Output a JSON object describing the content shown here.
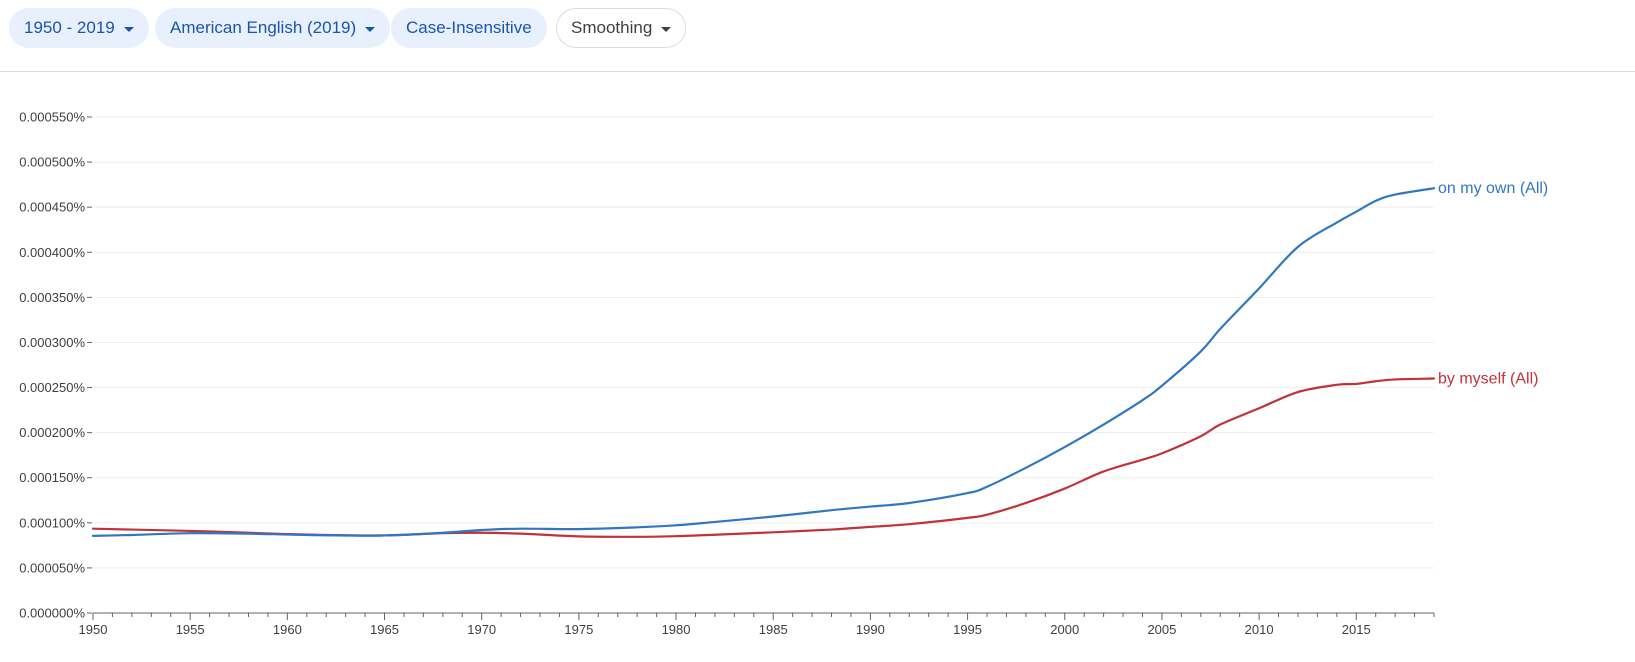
{
  "toolbar": {
    "year_range_label": "1950 - 2019",
    "corpus_label": "American English (2019)",
    "case_label": "Case-Insensitive",
    "smoothing_label": "Smoothing"
  },
  "chart_data": {
    "type": "line",
    "title": "",
    "xlabel": "",
    "ylabel": "",
    "xlim": [
      1950,
      2019
    ],
    "ylim": [
      0,
      0.00055
    ],
    "x_ticks": [
      1950,
      1955,
      1960,
      1965,
      1970,
      1975,
      1980,
      1985,
      1990,
      1995,
      2000,
      2005,
      2010,
      2015
    ],
    "y_ticks": [
      0,
      5e-05,
      0.0001,
      0.00015,
      0.0002,
      0.00025,
      0.0003,
      0.00035,
      0.0004,
      0.00045,
      0.0005,
      0.00055
    ],
    "y_tick_labels": [
      "0.000000%",
      "0.000050%",
      "0.000100%",
      "0.000150%",
      "0.000200%",
      "0.000250%",
      "0.000300%",
      "0.000350%",
      "0.000400%",
      "0.000450%",
      "0.000500%",
      "0.000550%"
    ],
    "grid": true,
    "legend": "inline-right",
    "series": [
      {
        "name": "on my own (All)",
        "color": "#3077c0",
        "x": [
          1950,
          1952,
          1955,
          1958,
          1960,
          1962,
          1965,
          1968,
          1970,
          1972,
          1975,
          1978,
          1980,
          1982,
          1985,
          1988,
          1990,
          1992,
          1995,
          1996,
          1998,
          2000,
          2002,
          2004,
          2005,
          2007,
          2008,
          2010,
          2012,
          2014,
          2015,
          2016,
          2017,
          2019
        ],
        "y": [
          8.55e-05,
          8.65e-05,
          8.85e-05,
          8.8e-05,
          8.7e-05,
          8.62e-05,
          8.6e-05,
          8.9e-05,
          9.2e-05,
          9.35e-05,
          9.3e-05,
          9.5e-05,
          9.72e-05,
          0.000101,
          0.000107,
          0.000114,
          0.000118,
          0.000122,
          0.000133,
          0.00014,
          0.000161,
          0.000184,
          0.000209,
          0.000236,
          0.000252,
          0.00029,
          0.000315,
          0.00036,
          0.000406,
          0.000433,
          0.000445,
          0.000457,
          0.000464,
          0.000471
        ]
      },
      {
        "name": "by myself (All)",
        "color": "#c0333a",
        "x": [
          1950,
          1952,
          1955,
          1958,
          1960,
          1962,
          1965,
          1968,
          1970,
          1972,
          1975,
          1978,
          1980,
          1982,
          1985,
          1988,
          1990,
          1992,
          1995,
          1996,
          1998,
          2000,
          2002,
          2004,
          2005,
          2007,
          2008,
          2010,
          2012,
          2014,
          2015,
          2016,
          2017,
          2019
        ],
        "y": [
          9.35e-05,
          9.25e-05,
          9.1e-05,
          8.9e-05,
          8.75e-05,
          8.65e-05,
          8.6e-05,
          8.85e-05,
          8.9e-05,
          8.8e-05,
          8.5e-05,
          8.45e-05,
          8.52e-05,
          8.68e-05,
          8.95e-05,
          9.25e-05,
          9.55e-05,
          9.85e-05,
          0.0001055,
          0.000109,
          0.000122,
          0.000138,
          0.000157,
          0.00017,
          0.000177,
          0.000196,
          0.000209,
          0.000227,
          0.000245,
          0.000253,
          0.000254,
          0.000257,
          0.000259,
          0.00026
        ]
      }
    ]
  }
}
